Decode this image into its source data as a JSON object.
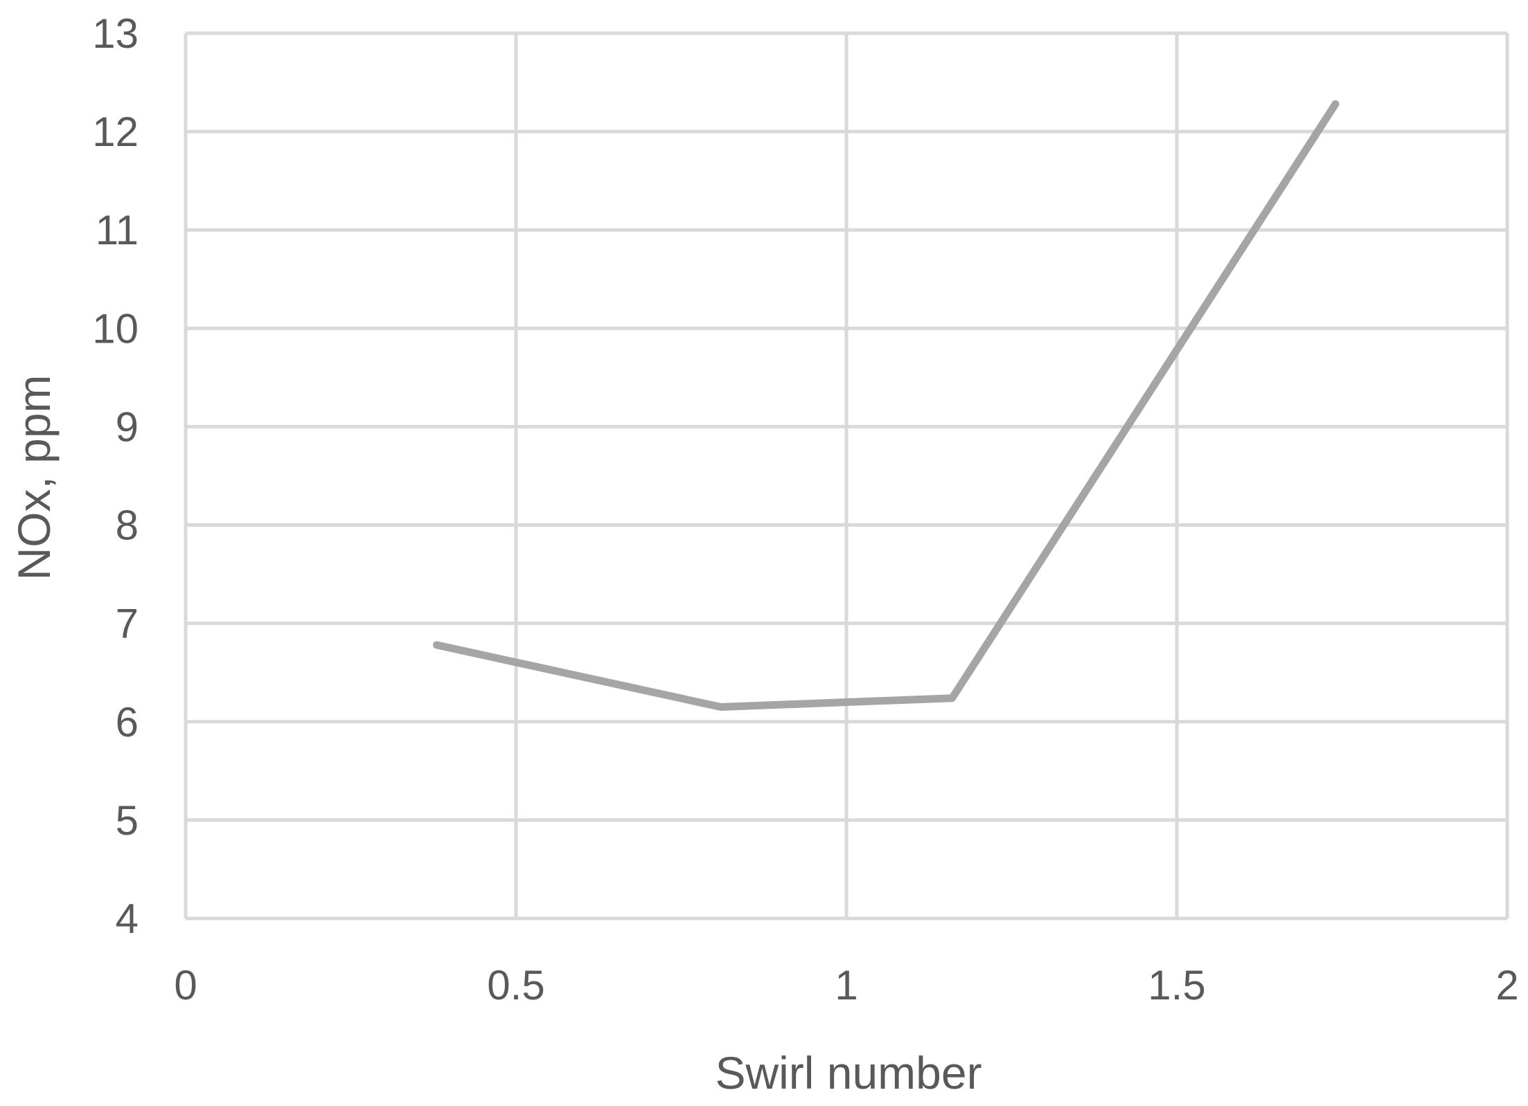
{
  "chart_data": {
    "type": "line",
    "title": "",
    "xlabel": "Swirl number",
    "ylabel": "NOx, ppm",
    "xlim": [
      0,
      2
    ],
    "ylim": [
      4,
      13
    ],
    "x_ticks": [
      "0",
      "0.5",
      "1",
      "1.5",
      "2"
    ],
    "y_ticks": [
      "4",
      "5",
      "6",
      "7",
      "8",
      "9",
      "10",
      "11",
      "12",
      "13"
    ],
    "grid": true,
    "legend": "none",
    "series": [
      {
        "color": "#a5a5a5",
        "x": [
          0.38,
          0.81,
          1.16,
          1.74
        ],
        "y": [
          6.78,
          6.15,
          6.24,
          12.28
        ]
      }
    ]
  }
}
